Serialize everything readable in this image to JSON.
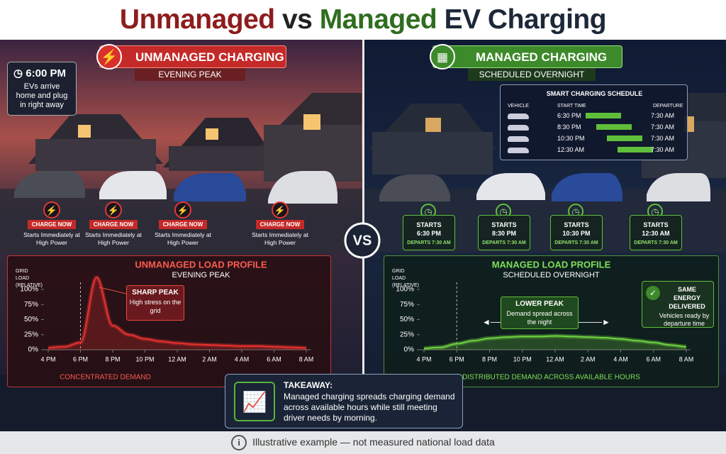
{
  "title": {
    "part1": "Unmanaged",
    "part2": "vs",
    "part3": "Managed",
    "part4": "EV Charging"
  },
  "left": {
    "heading": "UNMANAGED CHARGING",
    "subheading": "EVENING PEAK",
    "time": "6:00 PM",
    "note": "EVs arrive home and plug in right away",
    "badges": [
      {
        "label": "CHARGE NOW",
        "text": "Starts Immediately at High Power"
      },
      {
        "label": "CHARGE NOW",
        "text": "Starts Immediately at High Power"
      },
      {
        "label": "CHARGE NOW",
        "text": "Starts Immediately at High Power"
      },
      {
        "label": "CHARGE NOW",
        "text": "Starts Immediately at High Power"
      }
    ]
  },
  "vs": "VS",
  "right": {
    "heading": "MANAGED CHARGING",
    "subheading": "SCHEDULED OVERNIGHT",
    "schedule": {
      "title": "SMART CHARGING SCHEDULE",
      "headers": [
        "VEHICLE",
        "START TIME",
        "DEPARTURE"
      ],
      "rows": [
        {
          "start": "6:30 PM",
          "departure": "7:30 AM"
        },
        {
          "start": "8:30 PM",
          "departure": "7:30 AM"
        },
        {
          "start": "10:30 PM",
          "departure": "7:30 AM"
        },
        {
          "start": "12:30 AM",
          "departure": "7:30 AM"
        }
      ]
    },
    "badges": [
      {
        "label": "STARTS",
        "time": "6:30 PM",
        "departs": "DEPARTS 7:30 AM"
      },
      {
        "label": "STARTS",
        "time": "8:30 PM",
        "departs": "DEPARTS 7:30 AM"
      },
      {
        "label": "STARTS",
        "time": "10:30 PM",
        "departs": "DEPARTS 7:30 AM"
      },
      {
        "label": "STARTS",
        "time": "12:30 AM",
        "departs": "DEPARTS 7:30 AM"
      }
    ]
  },
  "chart_data": [
    {
      "type": "line",
      "title": "UNMANAGED LOAD PROFILE",
      "subtitle": "EVENING PEAK",
      "y_label": "GRID LOAD (RELATIVE)",
      "color": "#e8322e",
      "categories": [
        "4 PM",
        null,
        "6 PM",
        null,
        "8 PM",
        null,
        "10 PM",
        null,
        "12 AM",
        null,
        "2 AM",
        null,
        "4 AM",
        null,
        "6 AM",
        null,
        "8 AM"
      ],
      "values": [
        3,
        5,
        12,
        120,
        40,
        25,
        18,
        14,
        11,
        9,
        8,
        7,
        6,
        6,
        5,
        4,
        3
      ],
      "ylim": [
        0,
        125
      ],
      "yticks": [
        {
          "value": 0,
          "label": "0%"
        },
        {
          "value": 25,
          "label": "25%"
        },
        {
          "value": 50,
          "label": "50%"
        },
        {
          "value": 75,
          "label": "75%"
        },
        {
          "value": 100,
          "label": "100%"
        }
      ],
      "annotation": {
        "title": "SHARP PEAK",
        "text": "High stress on the grid"
      },
      "footer": "CONCENTRATED DEMAND"
    },
    {
      "type": "line",
      "title": "MANAGED LOAD PROFILE",
      "subtitle": "SCHEDULED OVERNIGHT",
      "y_label": "GRID LOAD (RELATIVE)",
      "color": "#6fd13f",
      "categories": [
        "4 PM",
        null,
        "6 PM",
        null,
        "8 PM",
        null,
        "10 PM",
        null,
        "12 AM",
        null,
        "2 AM",
        null,
        "4 AM",
        null,
        "6 AM",
        null,
        "8 AM"
      ],
      "values": [
        2,
        4,
        10,
        15,
        19,
        21,
        22,
        22,
        23,
        22,
        21,
        20,
        18,
        15,
        12,
        8,
        5
      ],
      "ylim": [
        0,
        125
      ],
      "yticks": [
        {
          "value": 0,
          "label": "0%"
        },
        {
          "value": 25,
          "label": "25%"
        },
        {
          "value": 50,
          "label": "50%"
        },
        {
          "value": 75,
          "label": "75%"
        },
        {
          "value": 100,
          "label": "100%"
        }
      ],
      "annotation": {
        "title": "LOWER PEAK",
        "text": "Demand spread across the night"
      },
      "side_note": {
        "title": "SAME ENERGY DELIVERED",
        "text": "Vehicles ready by departure time"
      },
      "footer": "DISTRIBUTED DEMAND ACROSS AVAILABLE HOURS"
    }
  ],
  "takeaway": {
    "title": "TAKEAWAY:",
    "text": "Managed charging spreads charging demand across available hours while still meeting driver needs by morning."
  },
  "footer": "Illustrative example — not measured national load data"
}
